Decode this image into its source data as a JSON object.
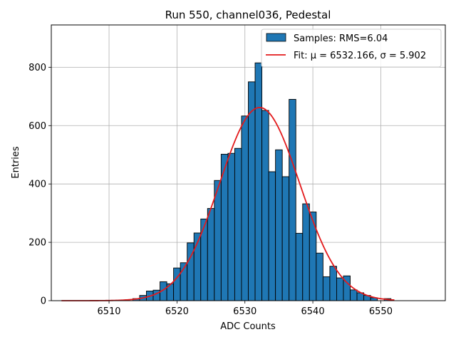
{
  "chart_data": {
    "type": "bar",
    "title": "Run 550, channel036, Pedestal",
    "xlabel": "ADC Counts",
    "ylabel": "Entries",
    "xlim": [
      6501.5,
      6559.5
    ],
    "ylim": [
      0,
      945
    ],
    "x_ticks": [
      6510,
      6520,
      6530,
      6540,
      6550
    ],
    "y_ticks": [
      0,
      200,
      400,
      600,
      800
    ],
    "grid": true,
    "legend_position": "top-right",
    "colors": {
      "bars": "#1f77b4",
      "bar_edge": "#000000",
      "fit": "#e31a1c",
      "grid": "#b0b0b0"
    },
    "bin_width": 1,
    "bins": [
      [
        6514,
        7
      ],
      [
        6515,
        18
      ],
      [
        6516,
        33
      ],
      [
        6517,
        36
      ],
      [
        6518,
        65
      ],
      [
        6519,
        58
      ],
      [
        6520,
        112
      ],
      [
        6521,
        130
      ],
      [
        6522,
        198
      ],
      [
        6523,
        232
      ],
      [
        6524,
        280
      ],
      [
        6525,
        316
      ],
      [
        6526,
        412
      ],
      [
        6527,
        502
      ],
      [
        6528,
        505
      ],
      [
        6529,
        522
      ],
      [
        6530,
        633
      ],
      [
        6531,
        750
      ],
      [
        6532,
        815
      ],
      [
        6533,
        652
      ],
      [
        6534,
        442
      ],
      [
        6535,
        517
      ],
      [
        6536,
        425
      ],
      [
        6537,
        690
      ],
      [
        6538,
        231
      ],
      [
        6539,
        332
      ],
      [
        6540,
        304
      ],
      [
        6541,
        163
      ],
      [
        6542,
        82
      ],
      [
        6543,
        118
      ],
      [
        6544,
        78
      ],
      [
        6545,
        85
      ],
      [
        6546,
        37
      ],
      [
        6547,
        27
      ],
      [
        6548,
        18
      ],
      [
        6549,
        10
      ],
      [
        6551,
        7
      ]
    ],
    "series": [
      {
        "name": "Samples: RMS=6.04",
        "type": "histogram"
      },
      {
        "name": "Fit: μ = 6532.166, σ = 5.902",
        "type": "gaussian",
        "mu": 6532.166,
        "sigma": 5.902,
        "amplitude": 662,
        "x_range": [
          6503,
          6552
        ]
      }
    ]
  }
}
